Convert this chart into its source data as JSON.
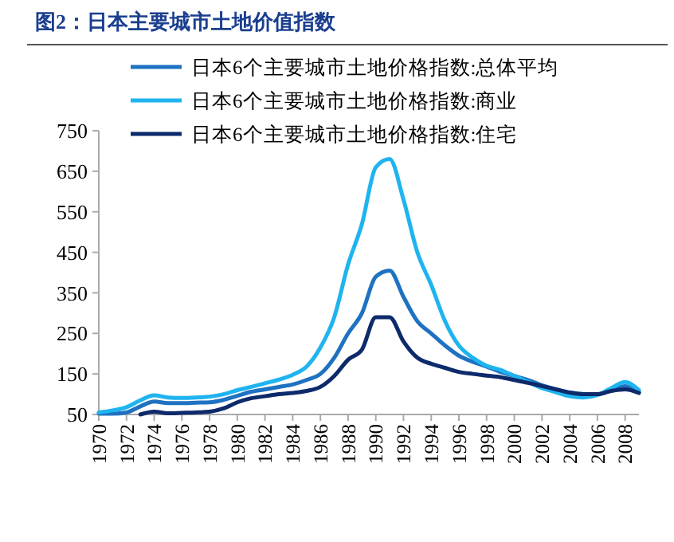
{
  "chart_data": {
    "type": "line",
    "title": "图2：日本主要城市土地价值指数",
    "x": [
      1970,
      1971,
      1972,
      1973,
      1974,
      1975,
      1976,
      1977,
      1978,
      1979,
      1980,
      1981,
      1982,
      1983,
      1984,
      1985,
      1986,
      1987,
      1988,
      1989,
      1990,
      1991,
      1992,
      1993,
      1994,
      1995,
      1996,
      1997,
      1998,
      1999,
      2000,
      2001,
      2002,
      2003,
      2004,
      2005,
      2006,
      2007,
      2008,
      2009
    ],
    "series": [
      {
        "name": "日本6个主要城市土地价格指数:总体平均",
        "color": "#1f72c1",
        "values": [
          52,
          52,
          55,
          70,
          82,
          78,
          78,
          79,
          80,
          86,
          96,
          106,
          112,
          118,
          124,
          135,
          150,
          190,
          250,
          300,
          390,
          405,
          340,
          280,
          250,
          220,
          195,
          180,
          168,
          155,
          145,
          135,
          122,
          112,
          104,
          100,
          100,
          110,
          120,
          105
        ]
      },
      {
        "name": "日本6个主要城市土地价格指数:商业",
        "color": "#1fb4ef",
        "values": [
          55,
          60,
          68,
          85,
          97,
          92,
          91,
          92,
          94,
          100,
          110,
          118,
          127,
          136,
          148,
          168,
          215,
          290,
          420,
          520,
          660,
          680,
          580,
          450,
          370,
          280,
          220,
          190,
          170,
          160,
          145,
          130,
          115,
          105,
          95,
          92,
          98,
          115,
          130,
          110
        ]
      },
      {
        "name": "日本6个主要城市土地价格指数:住宅",
        "color": "#0d2a6b",
        "values": [
          null,
          null,
          null,
          50,
          57,
          53,
          54,
          55,
          57,
          65,
          80,
          90,
          95,
          100,
          103,
          108,
          118,
          145,
          185,
          210,
          290,
          290,
          230,
          190,
          175,
          165,
          155,
          150,
          146,
          142,
          135,
          128,
          120,
          112,
          104,
          100,
          100,
          108,
          112,
          103
        ]
      }
    ],
    "xlim": [
      1970,
      2009
    ],
    "xticks": [
      1970,
      1972,
      1974,
      1976,
      1978,
      1980,
      1982,
      1984,
      1986,
      1988,
      1990,
      1992,
      1994,
      1996,
      1998,
      2000,
      2002,
      2004,
      2006,
      2008
    ],
    "ylim": [
      50,
      750
    ],
    "yticks": [
      50,
      150,
      250,
      350,
      450,
      550,
      650,
      750
    ],
    "legend": "top right",
    "grid": false,
    "marker": "none",
    "line_style": "solid"
  }
}
